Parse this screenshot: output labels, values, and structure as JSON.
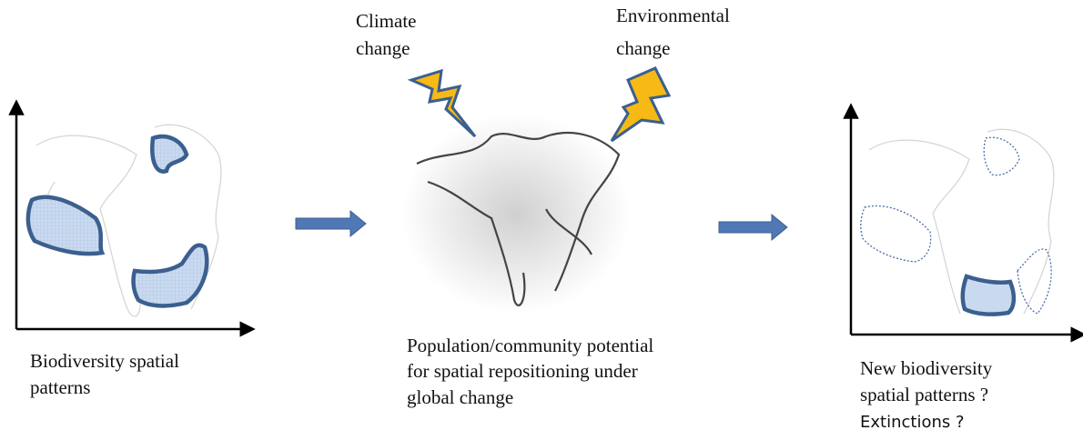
{
  "panels": {
    "left": {
      "caption": [
        "Biodiversity spatial",
        "patterns"
      ]
    },
    "middle": {
      "drivers": [
        [
          "Climate",
          "change"
        ],
        [
          "Environmental",
          "change"
        ]
      ],
      "caption": [
        "Population/community potential",
        "for spatial repositioning under",
        "global change"
      ]
    },
    "right": {
      "caption": [
        "New biodiversity",
        "spatial patterns ?"
      ],
      "note": "Extinctions ?"
    }
  }
}
